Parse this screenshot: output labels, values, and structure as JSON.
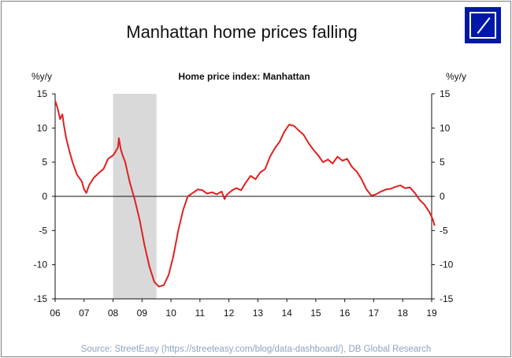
{
  "title": "Manhattan home prices falling",
  "source": "Source: StreetEasy (https://streeteasy.com/blog/data-dashboard/), DB Global Research",
  "logo": {
    "icon": "deutsche-bank-logo",
    "color": "#0018a8"
  },
  "chart_data": {
    "type": "line",
    "title": "Home price index: Manhattan",
    "ylabel_left": "%y/y",
    "ylabel_right": "%y/y",
    "ylim": [
      -15,
      15
    ],
    "yticks": [
      15,
      10,
      5,
      0,
      -5,
      -10,
      -15
    ],
    "xlim": [
      2006,
      2019
    ],
    "xticks": [
      {
        "label": "06",
        "value": 2006
      },
      {
        "label": "07",
        "value": 2007
      },
      {
        "label": "08",
        "value": 2008
      },
      {
        "label": "09",
        "value": 2009
      },
      {
        "label": "10",
        "value": 2010
      },
      {
        "label": "11",
        "value": 2011
      },
      {
        "label": "12",
        "value": 2012
      },
      {
        "label": "13",
        "value": 2013
      },
      {
        "label": "14",
        "value": 2014
      },
      {
        "label": "15",
        "value": 2015
      },
      {
        "label": "16",
        "value": 2016
      },
      {
        "label": "17",
        "value": 2017
      },
      {
        "label": "18",
        "value": 2018
      },
      {
        "label": "19",
        "value": 2019
      }
    ],
    "recession_shading": {
      "start": 2008.0,
      "end": 2009.5,
      "color": "#d9d9d9"
    },
    "zero_line": true,
    "grid": false,
    "series": [
      {
        "color": "#e02020",
        "points": [
          [
            2006.0,
            14.0
          ],
          [
            2006.08,
            13.0
          ],
          [
            2006.17,
            11.3
          ],
          [
            2006.25,
            12.0
          ],
          [
            2006.3,
            10.5
          ],
          [
            2006.38,
            8.5
          ],
          [
            2006.5,
            6.5
          ],
          [
            2006.6,
            5.0
          ],
          [
            2006.75,
            3.2
          ],
          [
            2006.92,
            2.2
          ],
          [
            2007.0,
            1.0
          ],
          [
            2007.08,
            0.5
          ],
          [
            2007.17,
            1.6
          ],
          [
            2007.33,
            2.7
          ],
          [
            2007.5,
            3.4
          ],
          [
            2007.67,
            4.0
          ],
          [
            2007.83,
            5.5
          ],
          [
            2008.0,
            6.0
          ],
          [
            2008.08,
            6.5
          ],
          [
            2008.17,
            7.2
          ],
          [
            2008.2,
            8.5
          ],
          [
            2008.27,
            6.8
          ],
          [
            2008.33,
            6.0
          ],
          [
            2008.42,
            5.0
          ],
          [
            2008.5,
            3.5
          ],
          [
            2008.58,
            2.0
          ],
          [
            2008.75,
            -0.5
          ],
          [
            2008.92,
            -3.5
          ],
          [
            2009.08,
            -7.0
          ],
          [
            2009.25,
            -10.2
          ],
          [
            2009.42,
            -12.5
          ],
          [
            2009.58,
            -13.2
          ],
          [
            2009.75,
            -13.0
          ],
          [
            2009.92,
            -11.5
          ],
          [
            2010.08,
            -8.8
          ],
          [
            2010.25,
            -5.0
          ],
          [
            2010.42,
            -2.0
          ],
          [
            2010.58,
            0.0
          ],
          [
            2010.75,
            0.5
          ],
          [
            2010.92,
            1.0
          ],
          [
            2011.08,
            0.9
          ],
          [
            2011.25,
            0.4
          ],
          [
            2011.42,
            0.6
          ],
          [
            2011.58,
            0.3
          ],
          [
            2011.75,
            0.7
          ],
          [
            2011.85,
            -0.4
          ],
          [
            2011.92,
            0.2
          ],
          [
            2012.08,
            0.8
          ],
          [
            2012.25,
            1.2
          ],
          [
            2012.42,
            0.9
          ],
          [
            2012.58,
            2.0
          ],
          [
            2012.75,
            3.0
          ],
          [
            2012.92,
            2.5
          ],
          [
            2013.08,
            3.5
          ],
          [
            2013.25,
            4.0
          ],
          [
            2013.42,
            5.8
          ],
          [
            2013.58,
            7.0
          ],
          [
            2013.75,
            8.0
          ],
          [
            2013.92,
            9.5
          ],
          [
            2014.08,
            10.5
          ],
          [
            2014.25,
            10.3
          ],
          [
            2014.42,
            9.6
          ],
          [
            2014.58,
            9.0
          ],
          [
            2014.75,
            7.8
          ],
          [
            2014.92,
            6.8
          ],
          [
            2015.08,
            6.0
          ],
          [
            2015.25,
            5.0
          ],
          [
            2015.42,
            5.4
          ],
          [
            2015.58,
            4.8
          ],
          [
            2015.75,
            5.8
          ],
          [
            2015.92,
            5.2
          ],
          [
            2016.08,
            5.5
          ],
          [
            2016.25,
            4.3
          ],
          [
            2016.42,
            3.6
          ],
          [
            2016.58,
            2.5
          ],
          [
            2016.75,
            1.0
          ],
          [
            2016.92,
            0.1
          ],
          [
            2017.08,
            0.3
          ],
          [
            2017.25,
            0.7
          ],
          [
            2017.42,
            1.0
          ],
          [
            2017.58,
            1.1
          ],
          [
            2017.75,
            1.4
          ],
          [
            2017.92,
            1.6
          ],
          [
            2018.08,
            1.2
          ],
          [
            2018.25,
            1.3
          ],
          [
            2018.42,
            0.5
          ],
          [
            2018.58,
            -0.5
          ],
          [
            2018.75,
            -1.2
          ],
          [
            2018.92,
            -2.3
          ],
          [
            2019.0,
            -3.0
          ],
          [
            2019.05,
            -3.5
          ],
          [
            2019.1,
            -4.3
          ]
        ]
      }
    ]
  }
}
